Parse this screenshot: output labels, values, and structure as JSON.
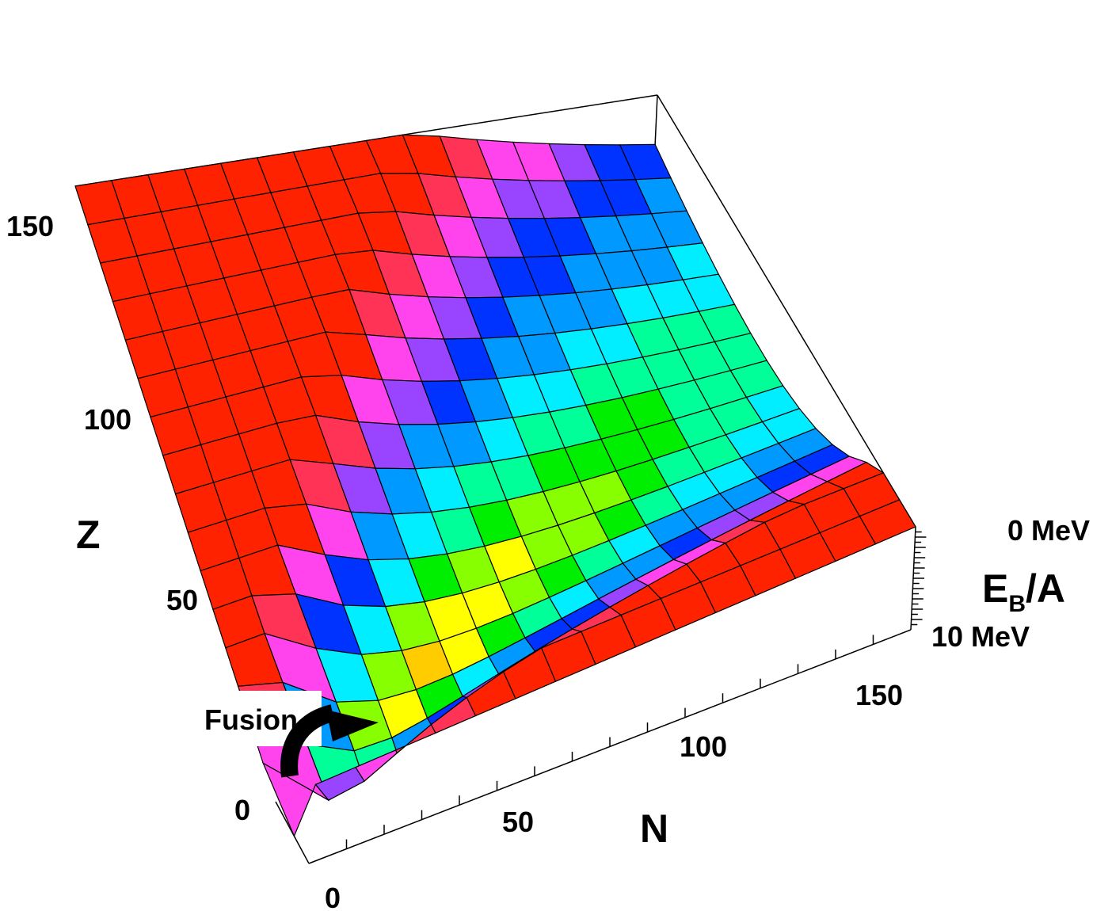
{
  "chart_data": {
    "type": "surface",
    "title": "",
    "x_axis": {
      "label": "N",
      "ticks": [
        "0",
        "50",
        "100",
        "150"
      ],
      "range": [
        0,
        160
      ]
    },
    "y_axis": {
      "label": "Z",
      "ticks": [
        "0",
        "50",
        "100",
        "150"
      ],
      "range": [
        0,
        160
      ]
    },
    "z_axis": {
      "label_main": "E",
      "label_sub": "B",
      "label_tail": "/A",
      "ticks": [
        "0 MeV",
        "10 MeV"
      ],
      "range": [
        0,
        10
      ]
    },
    "annotation": {
      "text": "Fusion",
      "arrow": "curved-arrow"
    },
    "grid_cells": 16,
    "colormap": [
      "#ff2200",
      "#ff3355",
      "#ff44ee",
      "#9944ff",
      "#0033ff",
      "#0099ff",
      "#00eeff",
      "#00ff99",
      "#00ee00",
      "#88ff00",
      "#ffff00",
      "#ffcc00",
      "#ff9900"
    ],
    "energy_levels": [
      0.0,
      1.5,
      2.5,
      3.5,
      4.5,
      5.5,
      6.5,
      7.2,
      7.7,
      8.0,
      8.3,
      8.55,
      8.8
    ]
  }
}
